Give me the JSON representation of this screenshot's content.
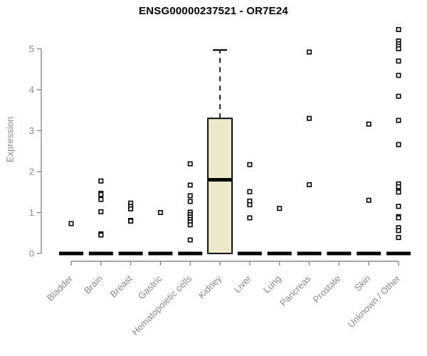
{
  "chart_data": {
    "type": "box",
    "title": "ENSG00000237521 - OR7E24",
    "ylabel": "Expression",
    "xlabel": "",
    "ylim": [
      0,
      5.6
    ],
    "yticks": [
      0,
      1,
      2,
      3,
      4,
      5
    ],
    "grid": false,
    "legend": false,
    "colors": {
      "box_fill": "#EEE8CD",
      "box_stroke": "#000000",
      "median": "#000000",
      "whisker": "#000000",
      "outlier_stroke": "#000000",
      "outlier_fill": "#FFFFFF",
      "axis": "#8A8A8A",
      "tick_text": "#8A8A8A",
      "title_text": "#000000"
    },
    "categories": [
      "Bladder",
      "Brain",
      "Breast",
      "Gastric",
      "Hematopoietic cells",
      "Kidney",
      "Liver",
      "Lung",
      "Pancreas",
      "Prostate",
      "Skin",
      "Unknown / Other"
    ],
    "boxes": [
      {
        "category": "Bladder",
        "q1": 0,
        "median": 0,
        "q3": 0,
        "whisker_low": 0,
        "whisker_high": 0,
        "outliers": [
          0.73
        ]
      },
      {
        "category": "Brain",
        "q1": 0,
        "median": 0,
        "q3": 0,
        "whisker_low": 0,
        "whisker_high": 0,
        "outliers": [
          1.77,
          1.47,
          1.44,
          1.32,
          1.02,
          0.48,
          0.45
        ]
      },
      {
        "category": "Breast",
        "q1": 0,
        "median": 0,
        "q3": 0,
        "whisker_low": 0,
        "whisker_high": 0,
        "outliers": [
          1.23,
          1.15,
          1.09,
          0.81,
          0.79
        ]
      },
      {
        "category": "Gastric",
        "q1": 0,
        "median": 0,
        "q3": 0,
        "whisker_low": 0,
        "whisker_high": 0,
        "outliers": [
          1.0
        ]
      },
      {
        "category": "Hematopoietic cells",
        "q1": 0,
        "median": 0,
        "q3": 0,
        "whisker_low": 0,
        "whisker_high": 0,
        "outliers": [
          2.19,
          1.67,
          1.41,
          1.27,
          1.01,
          0.95,
          0.89,
          0.83,
          0.77,
          0.7,
          0.33
        ]
      },
      {
        "category": "Kidney",
        "q1": 0,
        "median": 1.8,
        "q3": 3.3,
        "whisker_low": 0,
        "whisker_high": 4.97,
        "outliers": []
      },
      {
        "category": "Liver",
        "q1": 0,
        "median": 0,
        "q3": 0,
        "whisker_low": 0,
        "whisker_high": 0,
        "outliers": [
          2.17,
          1.51,
          1.28,
          1.19,
          0.87
        ]
      },
      {
        "category": "Lung",
        "q1": 0,
        "median": 0,
        "q3": 0,
        "whisker_low": 0,
        "whisker_high": 0,
        "outliers": [
          1.1
        ]
      },
      {
        "category": "Pancreas",
        "q1": 0,
        "median": 0,
        "q3": 0,
        "whisker_low": 0,
        "whisker_high": 0,
        "outliers": [
          4.92,
          3.3,
          1.68
        ]
      },
      {
        "category": "Prostate",
        "q1": 0,
        "median": 0,
        "q3": 0,
        "whisker_low": 0,
        "whisker_high": 0,
        "outliers": []
      },
      {
        "category": "Skin",
        "q1": 0,
        "median": 0,
        "q3": 0,
        "whisker_low": 0,
        "whisker_high": 0,
        "outliers": [
          3.16,
          1.3
        ]
      },
      {
        "category": "Unknown / Other",
        "q1": 0,
        "median": 0,
        "q3": 0,
        "whisker_low": 0,
        "whisker_high": 0,
        "outliers": [
          5.47,
          5.19,
          5.12,
          5.06,
          5.0,
          4.7,
          4.35,
          3.84,
          3.25,
          2.66,
          1.7,
          1.63,
          1.53,
          1.5,
          1.15,
          0.9,
          0.87,
          0.63,
          0.56,
          0.39
        ]
      }
    ]
  }
}
